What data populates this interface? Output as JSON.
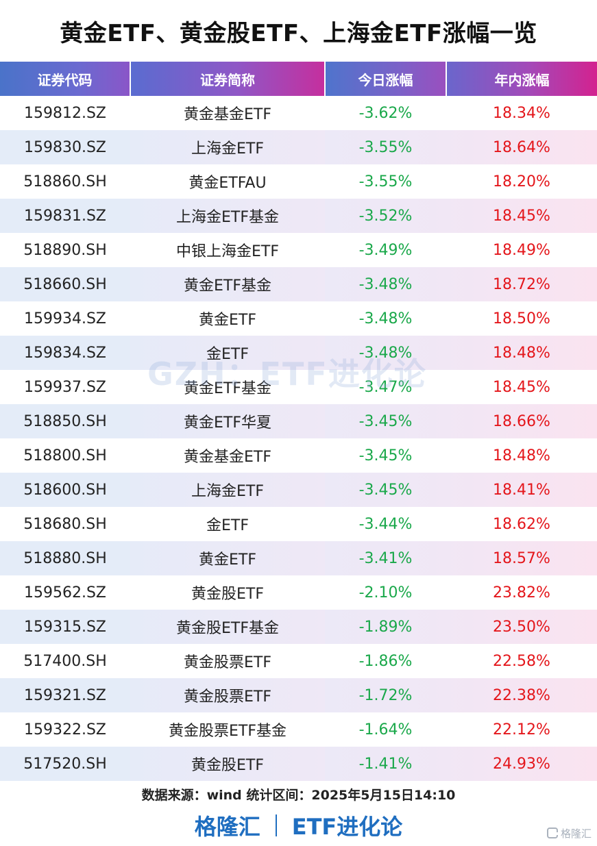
{
  "title": "黄金ETF、黄金股ETF、上海金ETF涨幅一览",
  "columns": [
    "证券代码",
    "证券简称",
    "今日涨幅",
    "年内涨幅"
  ],
  "rows": [
    [
      "159812.SZ",
      "黄金基金ETF",
      "-3.62%",
      "18.34%"
    ],
    [
      "159830.SZ",
      "上海金ETF",
      "-3.55%",
      "18.64%"
    ],
    [
      "518860.SH",
      "黄金ETFAU",
      "-3.55%",
      "18.20%"
    ],
    [
      "159831.SZ",
      "上海金ETF基金",
      "-3.52%",
      "18.45%"
    ],
    [
      "518890.SH",
      "中银上海金ETF",
      "-3.49%",
      "18.49%"
    ],
    [
      "518660.SH",
      "黄金ETF基金",
      "-3.48%",
      "18.72%"
    ],
    [
      "159934.SZ",
      "黄金ETF",
      "-3.48%",
      "18.50%"
    ],
    [
      "159834.SZ",
      "金ETF",
      "-3.48%",
      "18.48%"
    ],
    [
      "159937.SZ",
      "黄金ETF基金",
      "-3.47%",
      "18.45%"
    ],
    [
      "518850.SH",
      "黄金ETF华夏",
      "-3.45%",
      "18.66%"
    ],
    [
      "518800.SH",
      "黄金基金ETF",
      "-3.45%",
      "18.48%"
    ],
    [
      "518600.SH",
      "上海金ETF",
      "-3.45%",
      "18.41%"
    ],
    [
      "518680.SH",
      "金ETF",
      "-3.44%",
      "18.62%"
    ],
    [
      "518880.SH",
      "黄金ETF",
      "-3.41%",
      "18.57%"
    ],
    [
      "159562.SZ",
      "黄金股ETF",
      "-2.10%",
      "23.82%"
    ],
    [
      "159315.SZ",
      "黄金股ETF基金",
      "-1.89%",
      "23.50%"
    ],
    [
      "517400.SH",
      "黄金股票ETF",
      "-1.86%",
      "22.58%"
    ],
    [
      "159321.SZ",
      "黄金股票ETF",
      "-1.72%",
      "22.38%"
    ],
    [
      "159322.SZ",
      "黄金股票ETF基金",
      "-1.64%",
      "22.12%"
    ],
    [
      "517520.SH",
      "黄金股ETF",
      "-1.41%",
      "24.93%"
    ]
  ],
  "watermark": "GZH：ETF进化论",
  "source_note": "数据来源：wind   统计区间：2025年5月15日14:10",
  "footer": {
    "brand": "格隆汇",
    "column": "ETF进化论"
  },
  "corner_logo": "格隆汇",
  "colors": {
    "negative": "#1aa84a",
    "positive": "#e4161b",
    "footer_blue": "#1f6ec0"
  }
}
